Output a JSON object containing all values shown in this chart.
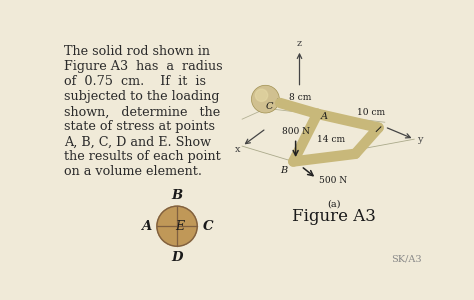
{
  "bg_color": "#f0ead8",
  "text_color": "#2a2a2a",
  "dark_text": "#1a1a1a",
  "rod_color": "#c8b87a",
  "rod_shadow": "#a09050",
  "sphere_color": "#d0c090",
  "sphere_highlight": "#e8dca8",
  "circle_fill": "#c09858",
  "circle_line": "#806040",
  "axis_color": "#444444",
  "figure_label": "Figure A3",
  "sub_label": "(a)",
  "watermark": "SK/A3",
  "label_8cm": "8 cm",
  "label_10cm": "10 cm",
  "label_14cm": "14 cm",
  "label_800N": "800 N",
  "label_500N": "500 N",
  "label_z": "z",
  "label_x": "x",
  "label_y": "y",
  "label_A": "A",
  "label_B_rod": "B",
  "label_C": "C",
  "label_circle_A": "A",
  "label_circle_B": "B",
  "label_circle_C": "C",
  "label_circle_D": "D",
  "label_circle_E": "E",
  "text_lines": [
    "The solid rod shown in",
    "Figure A3  has  a  radius",
    "of  0.75  cm.    If  it  is",
    "subjected to the loading",
    "shown,   determine   the",
    "state of stress at points",
    "A, B, C, D and E. Show",
    "the results of each point",
    "on a volume element."
  ]
}
